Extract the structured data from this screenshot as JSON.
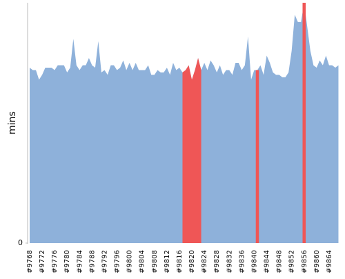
{
  "chart_data": {
    "type": "area",
    "y_label": "mins",
    "categories": [
      "#9768",
      null,
      null,
      null,
      "#9772",
      null,
      null,
      null,
      "#9776",
      null,
      null,
      null,
      "#9780",
      null,
      null,
      null,
      "#9784",
      null,
      null,
      null,
      "#9788",
      null,
      null,
      null,
      "#9792",
      null,
      null,
      null,
      "#9796",
      null,
      null,
      null,
      "#9800",
      null,
      null,
      null,
      "#9804",
      null,
      null,
      null,
      "#9808",
      null,
      null,
      null,
      "#9812",
      null,
      null,
      null,
      "#9816",
      null,
      null,
      null,
      "#9820",
      null,
      null,
      null,
      "#9824",
      null,
      null,
      null,
      "#9828",
      null,
      null,
      null,
      "#9832",
      null,
      null,
      null,
      "#9836",
      null,
      null,
      null,
      "#9840",
      null,
      null,
      null,
      "#9844",
      null,
      null,
      null,
      "#9848",
      null,
      null,
      null,
      "#9852",
      null,
      null,
      null,
      "#9856",
      null,
      null,
      null,
      "#9860",
      null,
      null,
      null,
      "#9864",
      null,
      null,
      null
    ],
    "series": [
      {
        "color": "#8eb1da",
        "values": [
          73,
          72,
          72,
          68,
          70,
          73,
          73,
          73,
          72,
          74,
          74,
          74,
          71,
          73,
          85,
          74,
          72,
          74,
          74,
          77,
          74,
          73,
          84,
          71,
          72,
          70,
          74,
          74,
          72,
          73,
          76,
          72,
          75,
          72,
          75,
          72,
          72,
          72,
          74,
          70,
          70,
          72,
          71,
          71,
          73,
          70,
          75,
          72,
          73,
          71,
          72,
          74,
          68,
          72,
          77,
          72,
          75,
          72,
          76,
          74,
          71,
          74,
          70,
          72,
          72,
          70,
          75,
          75,
          72,
          74,
          86,
          68,
          72,
          72,
          74,
          70,
          78,
          75,
          71,
          70,
          70,
          69,
          69,
          71,
          80,
          95,
          92,
          92,
          100,
          90,
          80,
          74,
          73,
          76,
          74,
          78,
          74,
          74,
          73,
          74
        ]
      },
      {
        "color": "#ef5656",
        "values": [
          null,
          null,
          null,
          null,
          null,
          null,
          null,
          null,
          null,
          null,
          null,
          null,
          null,
          null,
          null,
          null,
          null,
          null,
          null,
          null,
          null,
          null,
          null,
          null,
          null,
          null,
          null,
          null,
          null,
          null,
          null,
          null,
          null,
          null,
          null,
          null,
          null,
          null,
          null,
          null,
          null,
          null,
          null,
          null,
          null,
          null,
          null,
          null,
          null,
          71,
          72,
          74,
          68,
          72,
          77,
          72,
          null,
          null,
          null,
          null,
          null,
          null,
          null,
          null,
          null,
          null,
          null,
          null,
          null,
          null,
          null,
          null,
          null,
          72,
          null,
          null,
          null,
          null,
          null,
          null,
          null,
          null,
          null,
          null,
          null,
          null,
          null,
          null,
          100,
          null,
          null,
          null,
          null,
          null,
          null,
          null,
          null,
          null,
          null,
          null
        ]
      }
    ],
    "ylim": [
      0,
      100
    ],
    "yticks": [
      0
    ]
  }
}
